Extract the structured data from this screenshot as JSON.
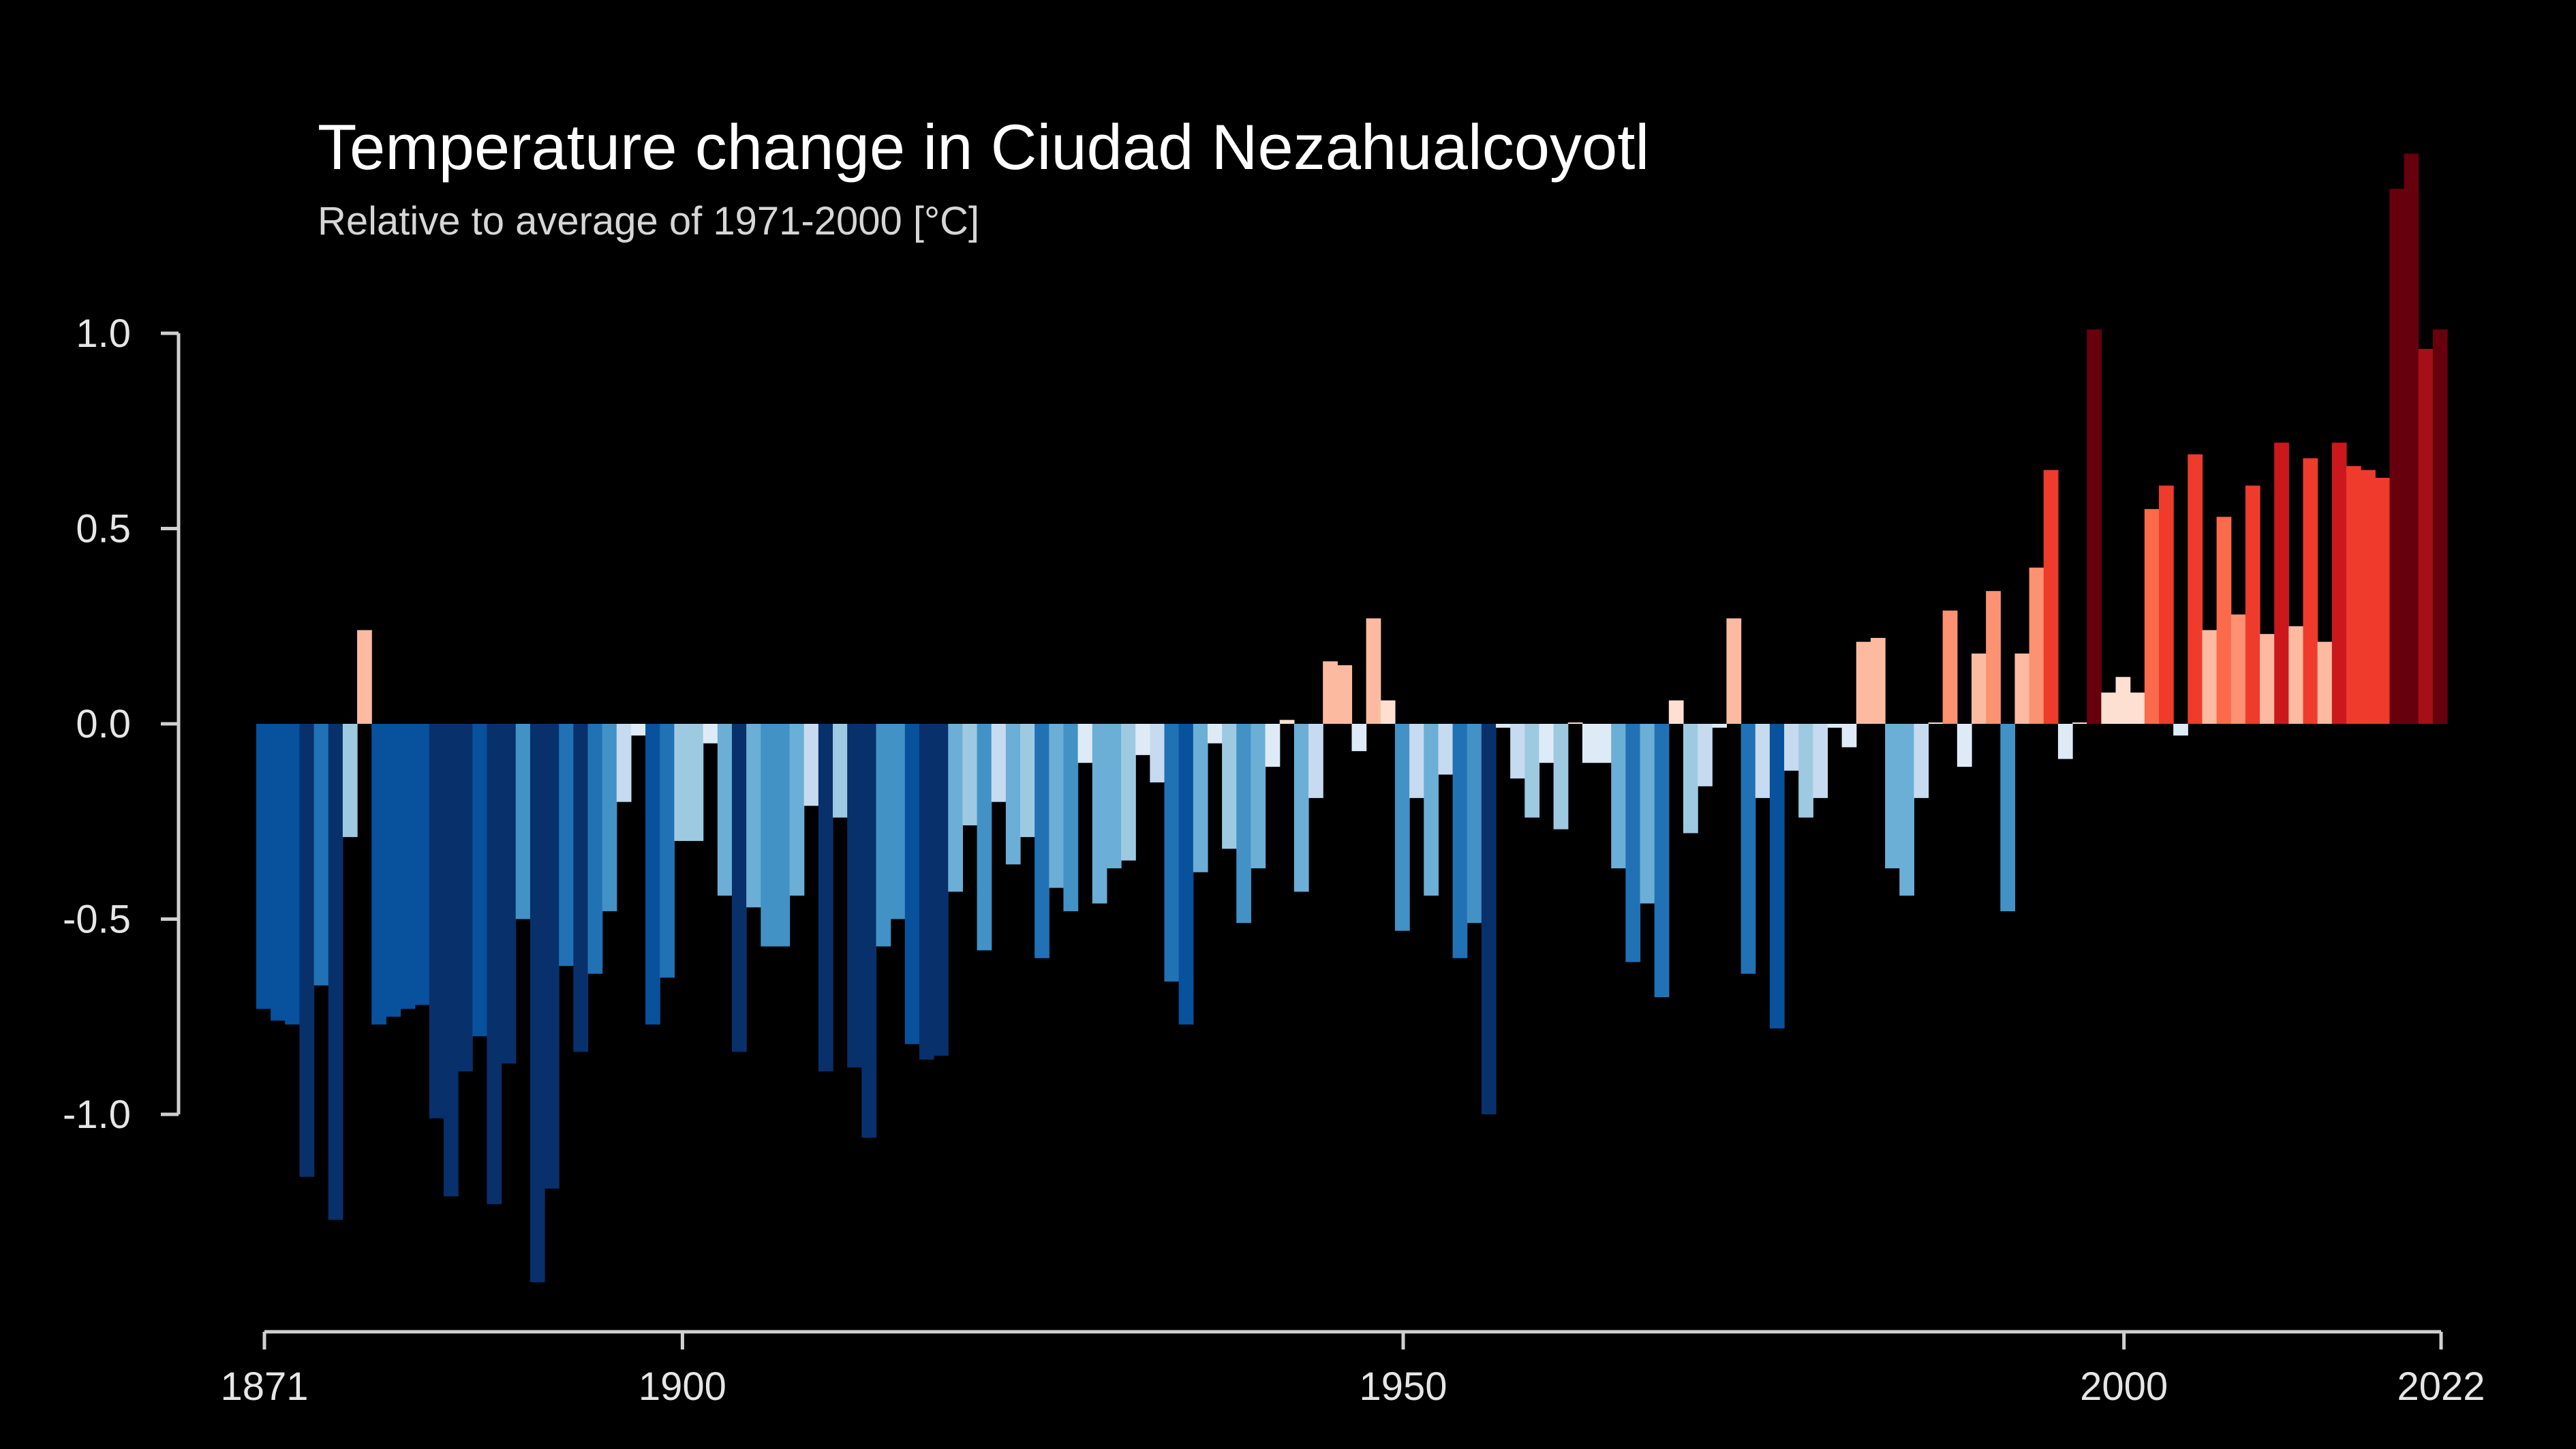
{
  "chart_data": {
    "type": "bar",
    "title": "Temperature change in Ciudad Nezahualcoyotl",
    "subtitle": "Relative to average of 1971-2000  [°C]",
    "xlabel": "",
    "ylabel": "",
    "x_start": 1871,
    "x_end": 2022,
    "xticks": [
      1871,
      1900,
      1950,
      2000,
      2022
    ],
    "xtick_labels": [
      "1871",
      "1900",
      "1950",
      "2000",
      "2022"
    ],
    "yticks": [
      1.0,
      0.5,
      0.0,
      -0.5,
      -1.0
    ],
    "ytick_labels": [
      "1.0",
      "0.5",
      "0.0",
      "-0.5",
      "-1.0"
    ],
    "ylim": [
      -1.45,
      1.45
    ],
    "grid": false,
    "legend": "none",
    "color_scale": {
      "cold": [
        "#08306b",
        "#08519c",
        "#2171b5",
        "#4292c6",
        "#6baed6",
        "#9ecae1",
        "#c6dbef",
        "#deebf7"
      ],
      "warm": [
        "#fee0d2",
        "#fcbba1",
        "#fc9272",
        "#fb6a4a",
        "#ef3b2c",
        "#cb181d",
        "#a50f15",
        "#67000d"
      ]
    },
    "years": [
      1871,
      1872,
      1873,
      1874,
      1875,
      1876,
      1877,
      1878,
      1879,
      1880,
      1881,
      1882,
      1883,
      1884,
      1885,
      1886,
      1887,
      1888,
      1889,
      1890,
      1891,
      1892,
      1893,
      1894,
      1895,
      1896,
      1897,
      1898,
      1899,
      1900,
      1901,
      1902,
      1903,
      1904,
      1905,
      1906,
      1907,
      1908,
      1909,
      1910,
      1911,
      1912,
      1913,
      1914,
      1915,
      1916,
      1917,
      1918,
      1919,
      1920,
      1921,
      1922,
      1923,
      1924,
      1925,
      1926,
      1927,
      1928,
      1929,
      1930,
      1931,
      1932,
      1933,
      1934,
      1935,
      1936,
      1937,
      1938,
      1939,
      1940,
      1941,
      1942,
      1943,
      1944,
      1945,
      1946,
      1947,
      1948,
      1949,
      1950,
      1951,
      1952,
      1953,
      1954,
      1955,
      1956,
      1957,
      1958,
      1959,
      1960,
      1961,
      1962,
      1963,
      1964,
      1965,
      1966,
      1967,
      1968,
      1969,
      1970,
      1971,
      1972,
      1973,
      1974,
      1975,
      1976,
      1977,
      1978,
      1979,
      1980,
      1981,
      1982,
      1983,
      1984,
      1985,
      1986,
      1987,
      1988,
      1989,
      1990,
      1991,
      1992,
      1993,
      1994,
      1995,
      1996,
      1997,
      1998,
      1999,
      2000,
      2001,
      2002,
      2003,
      2004,
      2005,
      2006,
      2007,
      2008,
      2009,
      2010,
      2011,
      2012,
      2013,
      2014,
      2015,
      2016,
      2017,
      2018,
      2019,
      2020,
      2021,
      2022
    ],
    "values": [
      -0.73,
      -0.76,
      -0.77,
      -1.16,
      -0.67,
      -1.27,
      -0.29,
      0.24,
      -0.77,
      -0.75,
      -0.73,
      -0.72,
      -1.01,
      -1.21,
      -0.89,
      -0.8,
      -1.23,
      -0.87,
      -0.5,
      -1.43,
      -1.19,
      -0.62,
      -0.84,
      -0.64,
      -0.48,
      -0.2,
      -0.03,
      -0.77,
      -0.65,
      -0.3,
      -0.3,
      -0.05,
      -0.44,
      -0.84,
      -0.47,
      -0.57,
      -0.57,
      -0.44,
      -0.21,
      -0.89,
      -0.24,
      -0.88,
      -1.06,
      -0.57,
      -0.5,
      -0.82,
      -0.86,
      -0.85,
      -0.43,
      -0.26,
      -0.58,
      -0.2,
      -0.36,
      -0.29,
      -0.6,
      -0.42,
      -0.48,
      -0.1,
      -0.46,
      -0.37,
      -0.35,
      -0.08,
      -0.15,
      -0.66,
      -0.77,
      -0.38,
      -0.05,
      -0.32,
      -0.51,
      -0.37,
      -0.11,
      0.01,
      -0.43,
      -0.19,
      0.16,
      0.15,
      -0.07,
      0.27,
      0.06,
      -0.53,
      -0.19,
      -0.44,
      -0.13,
      -0.6,
      -0.51,
      -1.0,
      -0.01,
      -0.14,
      -0.24,
      -0.1,
      -0.27,
      0.0,
      -0.1,
      -0.1,
      -0.37,
      -0.61,
      -0.46,
      -0.7,
      0.06,
      -0.28,
      -0.16,
      -0.01,
      0.27,
      -0.64,
      -0.19,
      -0.78,
      -0.12,
      -0.24,
      -0.19,
      -0.01,
      -0.06,
      0.21,
      0.22,
      -0.37,
      -0.44,
      -0.19,
      0.0,
      0.29,
      -0.11,
      0.18,
      0.34,
      -0.48,
      0.18,
      0.4,
      0.65,
      -0.09,
      0.0,
      1.01,
      0.08,
      0.12,
      0.08,
      0.55,
      0.61,
      -0.03,
      0.69,
      0.24,
      0.53,
      0.28,
      0.61,
      0.23,
      0.72,
      0.25,
      0.68,
      0.21,
      0.72,
      0.66,
      0.65,
      0.63,
      1.37,
      1.46,
      0.96,
      1.01
    ]
  }
}
